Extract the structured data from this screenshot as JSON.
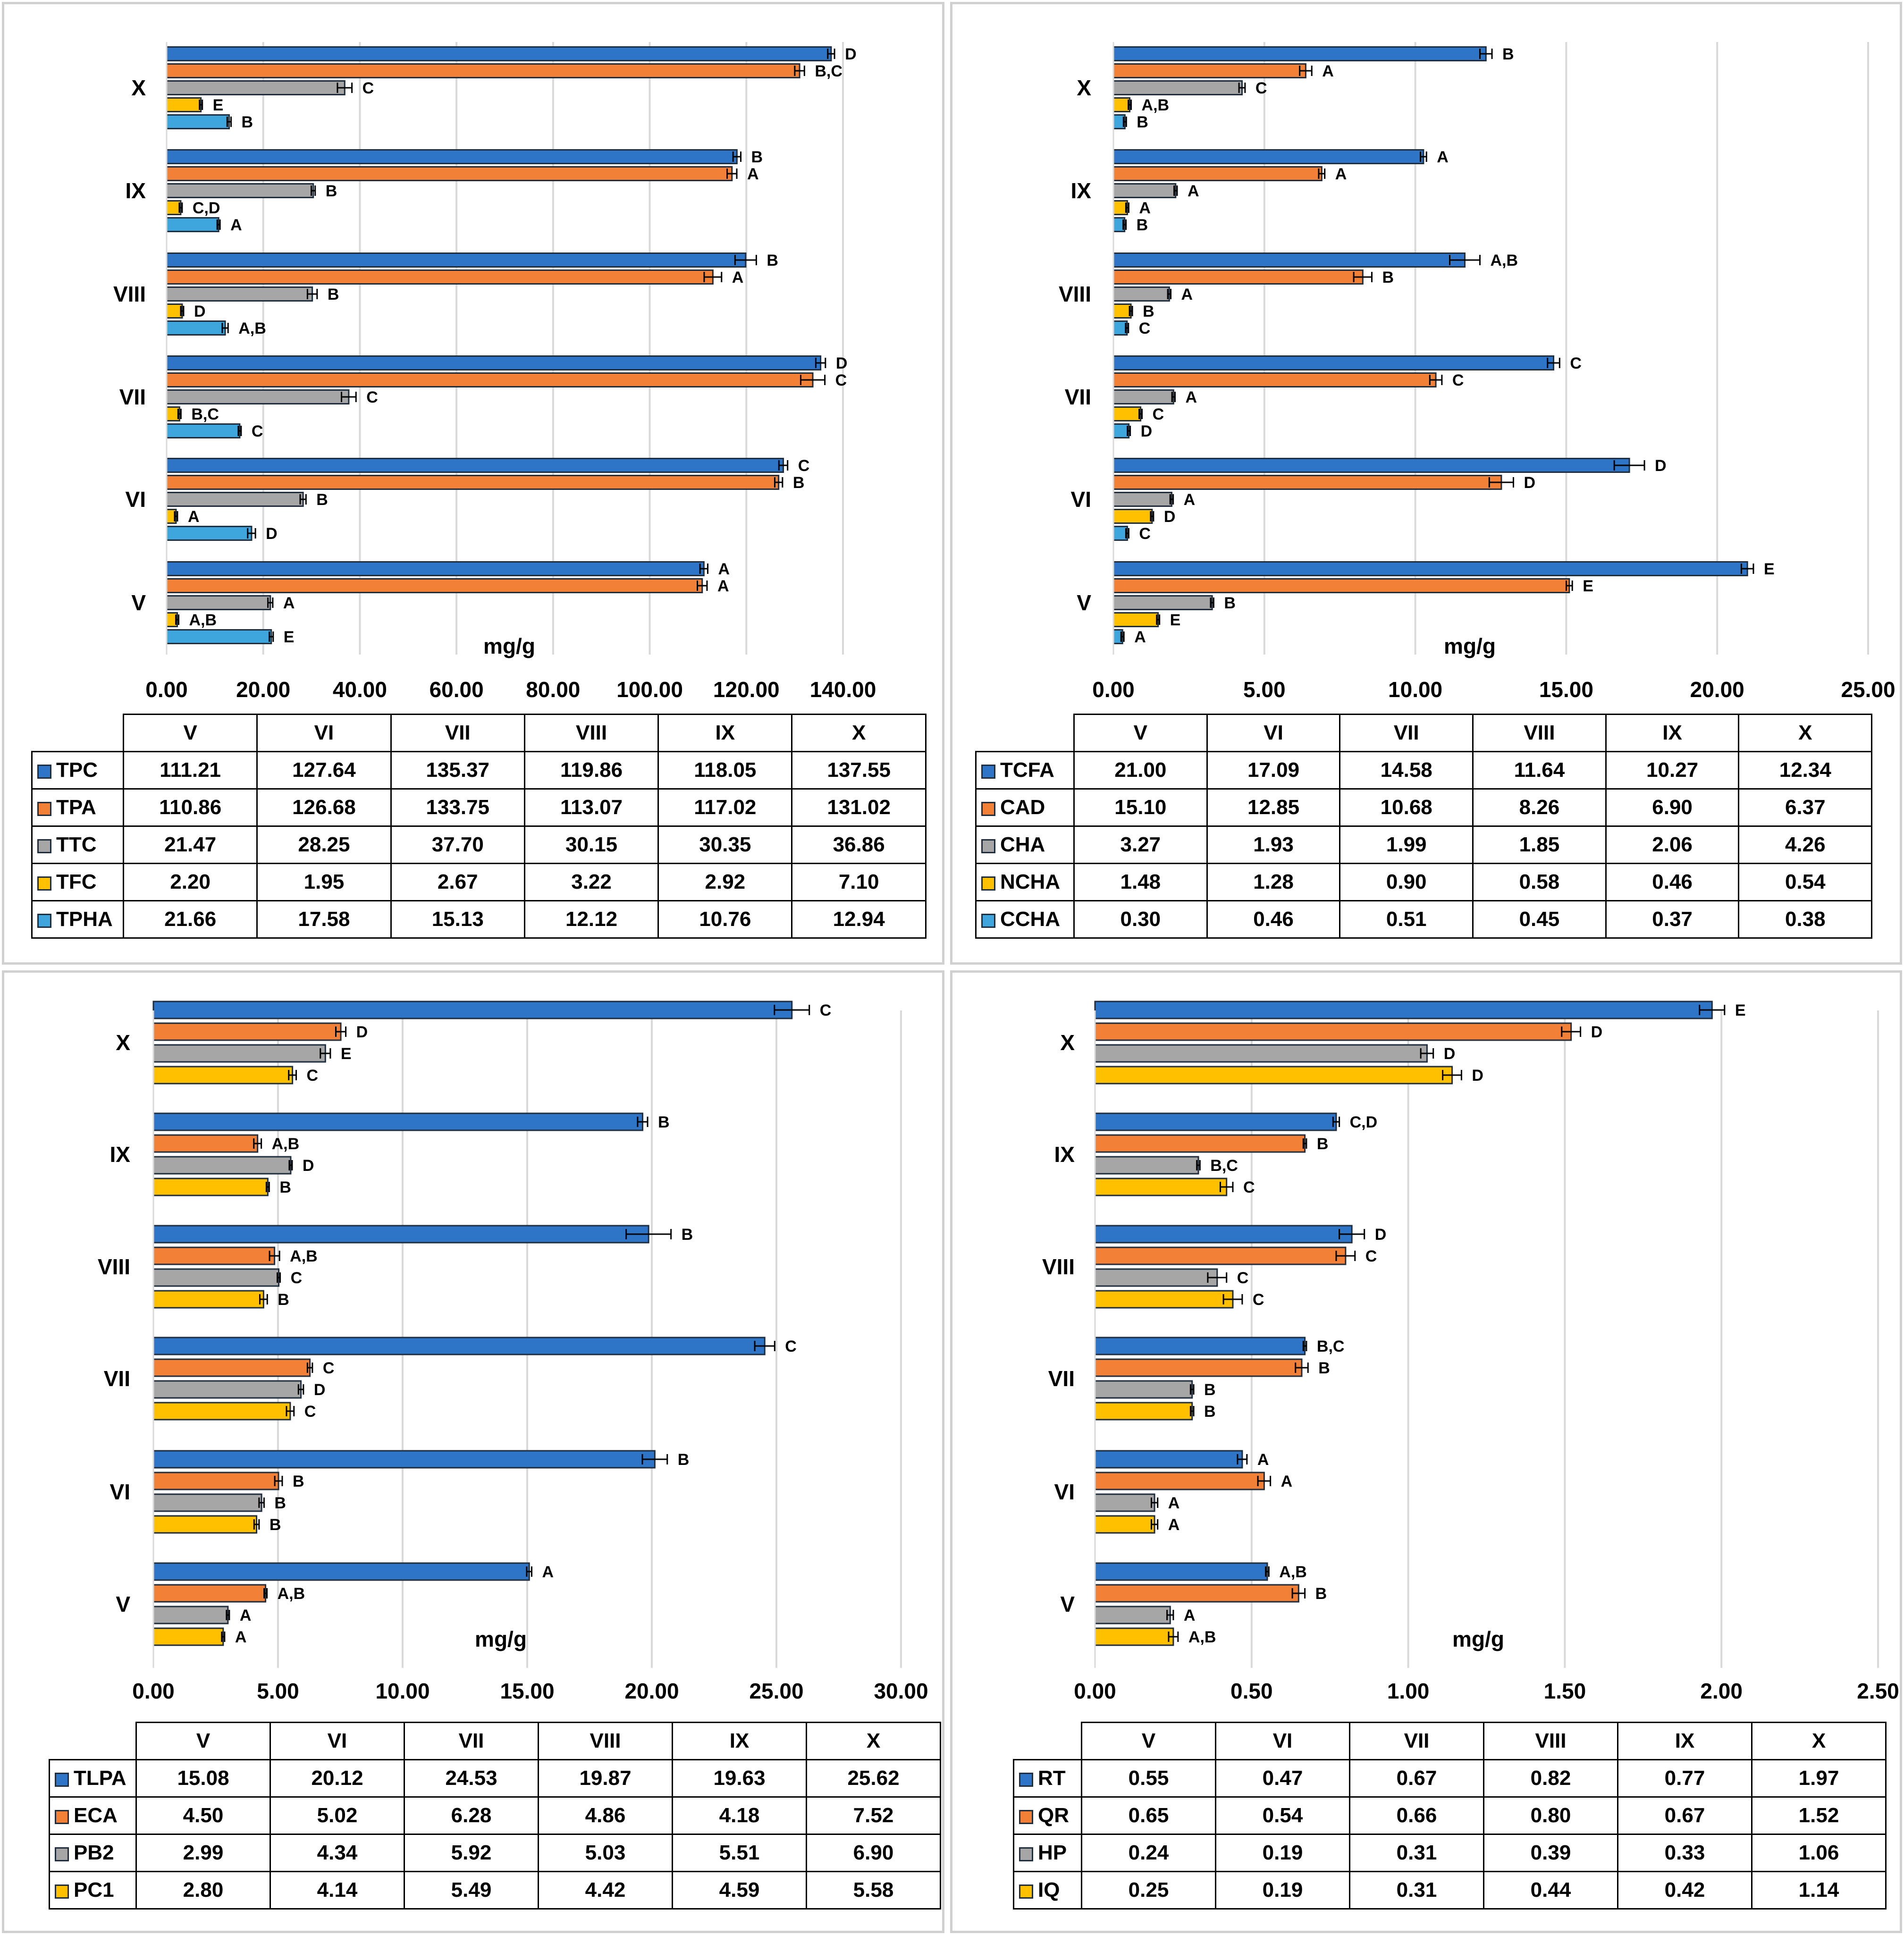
{
  "colors": {
    "s1": "#2e75c8",
    "s2": "#f28037",
    "s3": "#a6a6a6",
    "s4": "#ffc000",
    "s5": "#3fa5dd",
    "grid": "#d9d9d9"
  },
  "chart_data": [
    {
      "type": "bar",
      "orientation": "horizontal",
      "xlabel": "mg/g",
      "xlim": [
        0,
        140
      ],
      "ticks": [
        "0.00",
        "20.00",
        "40.00",
        "60.00",
        "80.00",
        "100.00",
        "120.00",
        "140.00"
      ],
      "tick_values": [
        0,
        20,
        40,
        60,
        80,
        100,
        120,
        140
      ],
      "categories": [
        "V",
        "VI",
        "VII",
        "VIII",
        "IX",
        "X"
      ],
      "series": [
        {
          "name": "TPC",
          "color": "#2e75c8",
          "values": [
            111.21,
            127.64,
            135.37,
            119.86,
            118.05,
            137.55
          ],
          "display": [
            "111.21",
            "127.64",
            "135.37",
            "119.86",
            "118.05",
            "137.55"
          ],
          "letters": [
            "A",
            "C",
            "D",
            "B",
            "B",
            "D"
          ],
          "errors": [
            0.8,
            0.9,
            1.0,
            2.2,
            0.8,
            0.7
          ]
        },
        {
          "name": "TPA",
          "color": "#f28037",
          "values": [
            110.86,
            126.68,
            133.75,
            113.07,
            117.02,
            131.02
          ],
          "display": [
            "110.86",
            "126.68",
            "133.75",
            "113.07",
            "117.02",
            "131.02"
          ],
          "letters": [
            "A",
            "B",
            "C",
            "A",
            "A",
            "B,C"
          ],
          "errors": [
            1.0,
            0.8,
            2.5,
            1.8,
            1.0,
            1.0
          ]
        },
        {
          "name": "TTC",
          "color": "#a6a6a6",
          "values": [
            21.47,
            28.25,
            37.7,
            30.15,
            30.35,
            36.86
          ],
          "display": [
            "21.47",
            "28.25",
            "37.70",
            "30.15",
            "30.35",
            "36.86"
          ],
          "letters": [
            "A",
            "B",
            "C",
            "B",
            "B",
            "C"
          ],
          "errors": [
            0.5,
            0.6,
            1.5,
            1.0,
            0.4,
            1.5
          ]
        },
        {
          "name": "TFC",
          "color": "#ffc000",
          "values": [
            2.2,
            1.95,
            2.67,
            3.22,
            2.92,
            7.1
          ],
          "display": [
            "2.20",
            "1.95",
            "2.67",
            "3.22",
            "2.92",
            "7.10"
          ],
          "letters": [
            "A,B",
            "A",
            "B,C",
            "D",
            "C,D",
            "E"
          ],
          "errors": [
            0.1,
            0.1,
            0.1,
            0.1,
            0.1,
            0.1
          ]
        },
        {
          "name": "TPHA",
          "color": "#3fa5dd",
          "values": [
            21.66,
            17.58,
            15.13,
            12.12,
            10.76,
            12.94
          ],
          "display": [
            "21.66",
            "17.58",
            "15.13",
            "12.12",
            "10.76",
            "12.94"
          ],
          "letters": [
            "E",
            "D",
            "C",
            "A,B",
            "A",
            "B"
          ],
          "errors": [
            0.4,
            0.8,
            0.2,
            0.6,
            0.2,
            0.4
          ]
        }
      ]
    },
    {
      "type": "bar",
      "orientation": "horizontal",
      "xlabel": "mg/g",
      "xlim": [
        0,
        25
      ],
      "ticks": [
        "0.00",
        "5.00",
        "10.00",
        "15.00",
        "20.00",
        "25.00"
      ],
      "tick_values": [
        0,
        5,
        10,
        15,
        20,
        25
      ],
      "categories": [
        "V",
        "VI",
        "VII",
        "VIII",
        "IX",
        "X"
      ],
      "series": [
        {
          "name": "TCFA",
          "color": "#2e75c8",
          "values": [
            21.0,
            17.09,
            14.58,
            11.64,
            10.27,
            12.34
          ],
          "display": [
            "21.00",
            "17.09",
            "14.58",
            "11.64",
            "10.27",
            "12.34"
          ],
          "letters": [
            "E",
            "D",
            "C",
            "A,B",
            "A",
            "B"
          ],
          "errors": [
            0.2,
            0.5,
            0.2,
            0.5,
            0.1,
            0.2
          ]
        },
        {
          "name": "CAD",
          "color": "#f28037",
          "values": [
            15.1,
            12.85,
            10.68,
            8.26,
            6.9,
            6.37
          ],
          "display": [
            "15.10",
            "12.85",
            "10.68",
            "8.26",
            "6.90",
            "6.37"
          ],
          "letters": [
            "E",
            "D",
            "C",
            "B",
            "A",
            "A"
          ],
          "errors": [
            0.1,
            0.4,
            0.2,
            0.3,
            0.1,
            0.2
          ]
        },
        {
          "name": "CHA",
          "color": "#a6a6a6",
          "values": [
            3.27,
            1.93,
            1.99,
            1.85,
            2.06,
            4.26
          ],
          "display": [
            "3.27",
            "1.93",
            "1.99",
            "1.85",
            "2.06",
            "4.26"
          ],
          "letters": [
            "B",
            "A",
            "A",
            "A",
            "A",
            "C"
          ],
          "errors": [
            0.05,
            0.05,
            0.05,
            0.05,
            0.05,
            0.1
          ]
        },
        {
          "name": "NCHA",
          "color": "#ffc000",
          "values": [
            1.48,
            1.28,
            0.9,
            0.58,
            0.46,
            0.54
          ],
          "display": [
            "1.48",
            "1.28",
            "0.90",
            "0.58",
            "0.46",
            "0.54"
          ],
          "letters": [
            "E",
            "D",
            "C",
            "B",
            "A",
            "A,B"
          ],
          "errors": [
            0.03,
            0.03,
            0.03,
            0.03,
            0.03,
            0.03
          ]
        },
        {
          "name": "CCHA",
          "color": "#3fa5dd",
          "values": [
            0.3,
            0.46,
            0.51,
            0.45,
            0.37,
            0.38
          ],
          "display": [
            "0.30",
            "0.46",
            "0.51",
            "0.45",
            "0.37",
            "0.38"
          ],
          "letters": [
            "A",
            "C",
            "D",
            "C",
            "B",
            "B"
          ],
          "errors": [
            0.02,
            0.02,
            0.02,
            0.02,
            0.02,
            0.02
          ]
        }
      ]
    },
    {
      "type": "bar",
      "orientation": "horizontal",
      "xlabel": "mg/g",
      "xlim": [
        0,
        30
      ],
      "ticks": [
        "0.00",
        "5.00",
        "10.00",
        "15.00",
        "20.00",
        "25.00",
        "30.00"
      ],
      "tick_values": [
        0,
        5,
        10,
        15,
        20,
        25,
        30
      ],
      "categories": [
        "V",
        "VI",
        "VII",
        "VIII",
        "IX",
        "X"
      ],
      "series": [
        {
          "name": "TLPA",
          "color": "#2e75c8",
          "values": [
            15.08,
            20.12,
            24.53,
            19.87,
            19.63,
            25.62
          ],
          "display": [
            "15.08",
            "20.12",
            "24.53",
            "19.87",
            "19.63",
            "25.62"
          ],
          "letters": [
            "A",
            "B",
            "C",
            "B",
            "B",
            "C"
          ],
          "errors": [
            0.1,
            0.5,
            0.4,
            0.9,
            0.2,
            0.7
          ]
        },
        {
          "name": "ECA",
          "color": "#f28037",
          "values": [
            4.5,
            5.02,
            6.28,
            4.86,
            4.18,
            7.52
          ],
          "display": [
            "4.50",
            "5.02",
            "6.28",
            "4.86",
            "4.18",
            "7.52"
          ],
          "letters": [
            "A,B",
            "B",
            "C",
            "A,B",
            "A,B",
            "D"
          ],
          "errors": [
            0.05,
            0.15,
            0.1,
            0.2,
            0.15,
            0.2
          ]
        },
        {
          "name": "PB2",
          "color": "#a6a6a6",
          "values": [
            2.99,
            4.34,
            5.92,
            5.03,
            5.51,
            6.9
          ],
          "display": [
            "2.99",
            "4.34",
            "5.92",
            "5.03",
            "5.51",
            "6.90"
          ],
          "letters": [
            "A",
            "B",
            "D",
            "C",
            "D",
            "E"
          ],
          "errors": [
            0.05,
            0.1,
            0.1,
            0.05,
            0.05,
            0.2
          ]
        },
        {
          "name": "PC1",
          "color": "#ffc000",
          "values": [
            2.8,
            4.14,
            5.49,
            4.42,
            4.59,
            5.58
          ],
          "display": [
            "2.80",
            "4.14",
            "5.49",
            "4.42",
            "4.59",
            "5.58"
          ],
          "letters": [
            "A",
            "B",
            "C",
            "B",
            "B",
            "C"
          ],
          "errors": [
            0.05,
            0.1,
            0.15,
            0.15,
            0.05,
            0.15
          ]
        }
      ]
    },
    {
      "type": "bar",
      "orientation": "horizontal",
      "xlabel": "mg/g",
      "xlim": [
        0,
        2.5
      ],
      "ticks": [
        "0.00",
        "0.50",
        "1.00",
        "1.50",
        "2.00",
        "2.50"
      ],
      "tick_values": [
        0,
        0.5,
        1.0,
        1.5,
        2.0,
        2.5
      ],
      "categories": [
        "V",
        "VI",
        "VII",
        "VIII",
        "IX",
        "X"
      ],
      "series": [
        {
          "name": "RT",
          "color": "#2e75c8",
          "values": [
            0.55,
            0.47,
            0.67,
            0.82,
            0.77,
            1.97
          ],
          "display": [
            "0.55",
            "0.47",
            "0.67",
            "0.82",
            "0.77",
            "1.97"
          ],
          "letters": [
            "A,B",
            "A",
            "B,C",
            "D",
            "C,D",
            "E"
          ],
          "errors": [
            0.005,
            0.015,
            0.005,
            0.04,
            0.01,
            0.04
          ]
        },
        {
          "name": "QR",
          "color": "#f28037",
          "values": [
            0.65,
            0.54,
            0.66,
            0.8,
            0.67,
            1.52
          ],
          "display": [
            "0.65",
            "0.54",
            "0.66",
            "0.80",
            "0.67",
            "1.52"
          ],
          "letters": [
            "B",
            "A",
            "B",
            "C",
            "B",
            "D"
          ],
          "errors": [
            0.02,
            0.02,
            0.02,
            0.03,
            0.005,
            0.03
          ]
        },
        {
          "name": "HP",
          "color": "#a6a6a6",
          "values": [
            0.24,
            0.19,
            0.31,
            0.39,
            0.33,
            1.06
          ],
          "display": [
            "0.24",
            "0.19",
            "0.31",
            "0.39",
            "0.33",
            "1.06"
          ],
          "letters": [
            "A",
            "A",
            "B",
            "C",
            "B,C",
            "D"
          ],
          "errors": [
            0.01,
            0.01,
            0.005,
            0.03,
            0.005,
            0.02
          ]
        },
        {
          "name": "IQ",
          "color": "#ffc000",
          "values": [
            0.25,
            0.19,
            0.31,
            0.44,
            0.42,
            1.14
          ],
          "display": [
            "0.25",
            "0.19",
            "0.31",
            "0.44",
            "0.42",
            "1.14"
          ],
          "letters": [
            "A,B",
            "A",
            "B",
            "C",
            "C",
            "D"
          ],
          "errors": [
            0.015,
            0.01,
            0.005,
            0.03,
            0.02,
            0.03
          ]
        }
      ]
    }
  ]
}
